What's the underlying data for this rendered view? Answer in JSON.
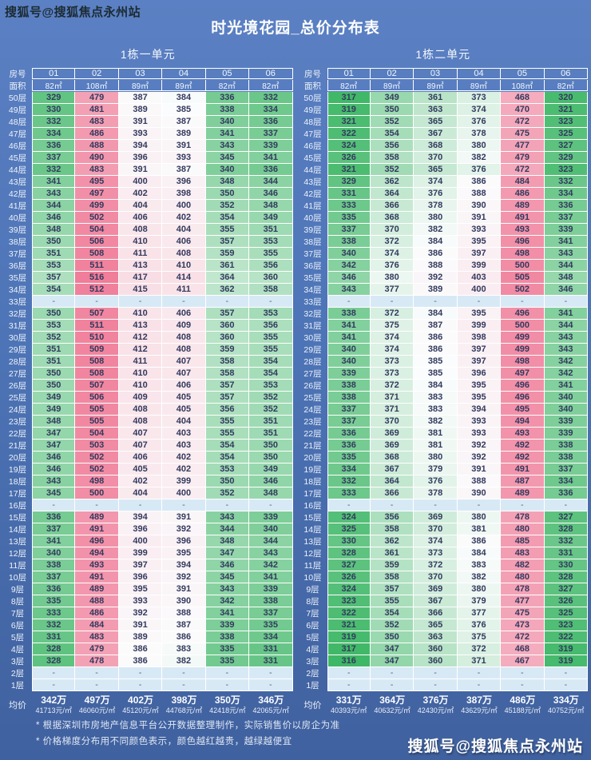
{
  "title": "时光境花园_总价分布表",
  "watermark_top": "搜狐号@搜狐焦点永州站",
  "watermark_bottom": "搜狐号@搜狐焦点永州站",
  "labels": {
    "room_header": "房号",
    "area_header": "面积",
    "floor_suffix": "层",
    "avg_label": "均价",
    "empty_cell": "-"
  },
  "scale": {
    "min": 316,
    "mid": 385,
    "max": 516,
    "min_color": "#3eb766",
    "mid_color": "#fbfcfd",
    "max_color": "#f07d99",
    "empty_bg": "#d8e9f6"
  },
  "footnotes": [
    "* 根据深圳市房地产信息平台公开数据整理制作，实际销售价以房企为准",
    "* 价格梯度分布用不同颜色表示，颜色越红越贵，越绿越便宜"
  ],
  "chart_data": [
    {
      "type": "heatmap",
      "unit": "1栋一单元",
      "columns": [
        "01",
        "02",
        "03",
        "04",
        "05",
        "06"
      ],
      "areas": [
        "82㎡",
        "108㎡",
        "89㎡",
        "89㎡",
        "82㎡",
        "82㎡"
      ],
      "rows": [
        {
          "floor": 50,
          "values": [
            329,
            479,
            387,
            384,
            336,
            332
          ]
        },
        {
          "floor": 49,
          "values": [
            330,
            481,
            389,
            385,
            338,
            334
          ]
        },
        {
          "floor": 48,
          "values": [
            332,
            483,
            391,
            387,
            340,
            336
          ]
        },
        {
          "floor": 47,
          "values": [
            334,
            486,
            393,
            389,
            341,
            337
          ]
        },
        {
          "floor": 46,
          "values": [
            336,
            488,
            394,
            391,
            343,
            339
          ]
        },
        {
          "floor": 45,
          "values": [
            337,
            490,
            396,
            393,
            345,
            341
          ]
        },
        {
          "floor": 44,
          "values": [
            332,
            483,
            391,
            387,
            340,
            336
          ]
        },
        {
          "floor": 43,
          "values": [
            341,
            495,
            400,
            396,
            348,
            344
          ]
        },
        {
          "floor": 42,
          "values": [
            343,
            497,
            402,
            398,
            350,
            346
          ]
        },
        {
          "floor": 41,
          "values": [
            344,
            499,
            404,
            400,
            352,
            348
          ]
        },
        {
          "floor": 40,
          "values": [
            346,
            502,
            406,
            402,
            354,
            349
          ]
        },
        {
          "floor": 39,
          "values": [
            348,
            504,
            408,
            404,
            355,
            351
          ]
        },
        {
          "floor": 38,
          "values": [
            350,
            506,
            410,
            406,
            357,
            353
          ]
        },
        {
          "floor": 37,
          "values": [
            351,
            508,
            411,
            408,
            359,
            355
          ]
        },
        {
          "floor": 36,
          "values": [
            353,
            511,
            413,
            410,
            361,
            356
          ]
        },
        {
          "floor": 35,
          "values": [
            357,
            516,
            417,
            414,
            364,
            360
          ]
        },
        {
          "floor": 34,
          "values": [
            354,
            512,
            415,
            411,
            362,
            358
          ]
        },
        {
          "floor": 33,
          "values": null
        },
        {
          "floor": 32,
          "values": [
            350,
            507,
            410,
            406,
            357,
            353
          ]
        },
        {
          "floor": 31,
          "values": [
            353,
            511,
            413,
            409,
            360,
            356
          ]
        },
        {
          "floor": 30,
          "values": [
            352,
            510,
            412,
            408,
            360,
            355
          ]
        },
        {
          "floor": 29,
          "values": [
            351,
            509,
            412,
            408,
            359,
            355
          ]
        },
        {
          "floor": 28,
          "values": [
            351,
            508,
            411,
            407,
            358,
            354
          ]
        },
        {
          "floor": 27,
          "values": [
            350,
            508,
            410,
            407,
            358,
            354
          ]
        },
        {
          "floor": 26,
          "values": [
            350,
            507,
            410,
            406,
            357,
            353
          ]
        },
        {
          "floor": 25,
          "values": [
            349,
            506,
            409,
            405,
            357,
            352
          ]
        },
        {
          "floor": 24,
          "values": [
            349,
            505,
            408,
            405,
            356,
            352
          ]
        },
        {
          "floor": 23,
          "values": [
            348,
            505,
            408,
            404,
            355,
            351
          ]
        },
        {
          "floor": 22,
          "values": [
            347,
            504,
            407,
            403,
            355,
            351
          ]
        },
        {
          "floor": 21,
          "values": [
            347,
            503,
            407,
            403,
            354,
            350
          ]
        },
        {
          "floor": 20,
          "values": [
            346,
            502,
            406,
            402,
            354,
            350
          ]
        },
        {
          "floor": 19,
          "values": [
            346,
            502,
            405,
            402,
            353,
            349
          ]
        },
        {
          "floor": 18,
          "values": [
            343,
            498,
            402,
            399,
            350,
            346
          ]
        },
        {
          "floor": 17,
          "values": [
            345,
            500,
            404,
            400,
            352,
            348
          ]
        },
        {
          "floor": 16,
          "values": null
        },
        {
          "floor": 15,
          "values": [
            336,
            489,
            394,
            391,
            343,
            339
          ]
        },
        {
          "floor": 14,
          "values": [
            337,
            491,
            396,
            392,
            344,
            340
          ]
        },
        {
          "floor": 13,
          "values": [
            341,
            496,
            400,
            396,
            348,
            344
          ]
        },
        {
          "floor": 12,
          "values": [
            340,
            494,
            399,
            395,
            347,
            343
          ]
        },
        {
          "floor": 11,
          "values": [
            338,
            493,
            397,
            394,
            346,
            342
          ]
        },
        {
          "floor": 10,
          "values": [
            337,
            491,
            396,
            392,
            345,
            341
          ]
        },
        {
          "floor": 9,
          "values": [
            336,
            489,
            395,
            391,
            343,
            339
          ]
        },
        {
          "floor": 8,
          "values": [
            335,
            488,
            393,
            390,
            342,
            338
          ]
        },
        {
          "floor": 7,
          "values": [
            333,
            486,
            392,
            388,
            341,
            337
          ]
        },
        {
          "floor": 6,
          "values": [
            332,
            484,
            391,
            387,
            339,
            335
          ]
        },
        {
          "floor": 5,
          "values": [
            331,
            483,
            389,
            386,
            338,
            334
          ]
        },
        {
          "floor": 4,
          "values": [
            328,
            479,
            386,
            383,
            335,
            331
          ]
        },
        {
          "floor": 3,
          "values": [
            328,
            478,
            386,
            382,
            335,
            331
          ]
        },
        {
          "floor": 2,
          "values": null
        },
        {
          "floor": 1,
          "values": null
        }
      ],
      "avg_prices": [
        "342万",
        "497万",
        "402万",
        "398万",
        "350万",
        "346万"
      ],
      "avg_unit_prices": [
        "41713元/㎡",
        "46060元/㎡",
        "45120元/㎡",
        "44768元/㎡",
        "42418元/㎡",
        "42065元/㎡"
      ]
    },
    {
      "type": "heatmap",
      "unit": "1栋二单元",
      "columns": [
        "01",
        "02",
        "03",
        "04",
        "05",
        "06"
      ],
      "areas": [
        "82㎡",
        "89㎡",
        "89㎡",
        "89㎡",
        "108㎡",
        "82㎡"
      ],
      "rows": [
        {
          "floor": 50,
          "values": [
            317,
            349,
            361,
            373,
            468,
            320
          ]
        },
        {
          "floor": 49,
          "values": [
            319,
            350,
            363,
            374,
            470,
            321
          ]
        },
        {
          "floor": 48,
          "values": [
            321,
            352,
            365,
            376,
            472,
            323
          ]
        },
        {
          "floor": 47,
          "values": [
            322,
            354,
            367,
            378,
            475,
            325
          ]
        },
        {
          "floor": 46,
          "values": [
            324,
            356,
            368,
            380,
            477,
            327
          ]
        },
        {
          "floor": 45,
          "values": [
            326,
            358,
            370,
            382,
            479,
            329
          ]
        },
        {
          "floor": 44,
          "values": [
            321,
            352,
            365,
            376,
            472,
            323
          ]
        },
        {
          "floor": 43,
          "values": [
            329,
            362,
            374,
            386,
            484,
            332
          ]
        },
        {
          "floor": 42,
          "values": [
            331,
            364,
            376,
            388,
            486,
            334
          ]
        },
        {
          "floor": 41,
          "values": [
            333,
            366,
            378,
            390,
            489,
            336
          ]
        },
        {
          "floor": 40,
          "values": [
            335,
            368,
            380,
            391,
            491,
            337
          ]
        },
        {
          "floor": 39,
          "values": [
            337,
            370,
            382,
            393,
            493,
            339
          ]
        },
        {
          "floor": 38,
          "values": [
            338,
            372,
            384,
            395,
            496,
            341
          ]
        },
        {
          "floor": 37,
          "values": [
            340,
            374,
            386,
            397,
            498,
            343
          ]
        },
        {
          "floor": 36,
          "values": [
            342,
            376,
            388,
            399,
            500,
            344
          ]
        },
        {
          "floor": 35,
          "values": [
            346,
            380,
            392,
            403,
            505,
            348
          ]
        },
        {
          "floor": 34,
          "values": [
            343,
            377,
            389,
            400,
            502,
            346
          ]
        },
        {
          "floor": 33,
          "values": null
        },
        {
          "floor": 32,
          "values": [
            338,
            372,
            384,
            395,
            496,
            341
          ]
        },
        {
          "floor": 31,
          "values": [
            341,
            375,
            387,
            399,
            500,
            344
          ]
        },
        {
          "floor": 30,
          "values": [
            341,
            374,
            386,
            398,
            499,
            343
          ]
        },
        {
          "floor": 29,
          "values": [
            340,
            374,
            386,
            397,
            499,
            343
          ]
        },
        {
          "floor": 28,
          "values": [
            340,
            373,
            385,
            397,
            498,
            342
          ]
        },
        {
          "floor": 27,
          "values": [
            339,
            373,
            385,
            396,
            497,
            342
          ]
        },
        {
          "floor": 26,
          "values": [
            338,
            372,
            384,
            395,
            496,
            341
          ]
        },
        {
          "floor": 25,
          "values": [
            338,
            371,
            383,
            395,
            496,
            340
          ]
        },
        {
          "floor": 24,
          "values": [
            337,
            371,
            383,
            394,
            495,
            340
          ]
        },
        {
          "floor": 23,
          "values": [
            337,
            370,
            382,
            393,
            494,
            339
          ]
        },
        {
          "floor": 22,
          "values": [
            336,
            369,
            381,
            393,
            493,
            339
          ]
        },
        {
          "floor": 21,
          "values": [
            336,
            369,
            381,
            392,
            492,
            338
          ]
        },
        {
          "floor": 20,
          "values": [
            335,
            368,
            380,
            392,
            492,
            338
          ]
        },
        {
          "floor": 19,
          "values": [
            334,
            367,
            379,
            391,
            491,
            337
          ]
        },
        {
          "floor": 18,
          "values": [
            332,
            364,
            376,
            388,
            487,
            334
          ]
        },
        {
          "floor": 17,
          "values": [
            333,
            366,
            378,
            390,
            489,
            336
          ]
        },
        {
          "floor": 16,
          "values": null
        },
        {
          "floor": 15,
          "values": [
            324,
            356,
            369,
            380,
            478,
            327
          ]
        },
        {
          "floor": 14,
          "values": [
            325,
            358,
            370,
            381,
            480,
            328
          ]
        },
        {
          "floor": 13,
          "values": [
            330,
            362,
            374,
            386,
            485,
            332
          ]
        },
        {
          "floor": 12,
          "values": [
            328,
            361,
            373,
            384,
            483,
            331
          ]
        },
        {
          "floor": 11,
          "values": [
            327,
            359,
            372,
            383,
            482,
            330
          ]
        },
        {
          "floor": 10,
          "values": [
            326,
            358,
            370,
            382,
            480,
            328
          ]
        },
        {
          "floor": 9,
          "values": [
            324,
            357,
            369,
            380,
            478,
            327
          ]
        },
        {
          "floor": 8,
          "values": [
            323,
            355,
            367,
            379,
            477,
            326
          ]
        },
        {
          "floor": 7,
          "values": [
            322,
            354,
            366,
            377,
            475,
            325
          ]
        },
        {
          "floor": 6,
          "values": [
            321,
            352,
            365,
            376,
            473,
            323
          ]
        },
        {
          "floor": 5,
          "values": [
            319,
            350,
            363,
            375,
            472,
            322
          ]
        },
        {
          "floor": 4,
          "values": [
            317,
            347,
            360,
            372,
            468,
            319
          ]
        },
        {
          "floor": 3,
          "values": [
            316,
            347,
            360,
            371,
            467,
            319
          ]
        },
        {
          "floor": 2,
          "values": null
        },
        {
          "floor": 1,
          "values": null
        }
      ],
      "avg_prices": [
        "331万",
        "364万",
        "376万",
        "387万",
        "486万",
        "334万"
      ],
      "avg_unit_prices": [
        "40393元/㎡",
        "40632元/㎡",
        "42430元/㎡",
        "43629元/㎡",
        "45188元/㎡",
        "40752元/㎡"
      ]
    }
  ]
}
